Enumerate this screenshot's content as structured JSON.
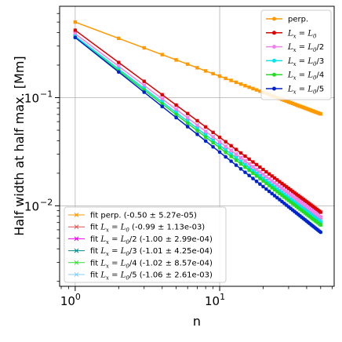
{
  "chart_data": {
    "type": "line",
    "xlabel": "n",
    "ylabel": "Half width at half max. [Mm]",
    "xscale": "log",
    "yscale": "log",
    "xlim": [
      0.78,
      62
    ],
    "ylim": [
      0.0018,
      0.7
    ],
    "grid": true,
    "x_ticks": [
      {
        "value": 1,
        "base": "10",
        "exp": "0"
      },
      {
        "value": 10,
        "base": "10",
        "exp": "1"
      }
    ],
    "y_ticks": [
      {
        "value": 0.01,
        "base": "10",
        "exp": "−2"
      },
      {
        "value": 0.1,
        "base": "10",
        "exp": "−1"
      }
    ],
    "n_max": 50,
    "legend_data_position": "upper right",
    "legend_fit_position": "lower left",
    "series": [
      {
        "key": "perp",
        "name": "perp.",
        "color": "#ff9900",
        "y_at_1": 0.5,
        "exponent": 0.5
      },
      {
        "key": "L0",
        "name": "Lₓ = L₀",
        "color": "#dd0000",
        "y_at_1": 0.42,
        "exponent": 0.99
      },
      {
        "key": "L0_2",
        "name": "Lₓ = L₀/2",
        "color": "#ee82ee",
        "y_at_1": 0.39,
        "exponent": 1.0
      },
      {
        "key": "L0_3",
        "name": "Lₓ = L₀/3",
        "color": "#00e5ee",
        "y_at_1": 0.37,
        "exponent": 1.01
      },
      {
        "key": "L0_4",
        "name": "Lₓ = L₀/4",
        "color": "#22dd22",
        "y_at_1": 0.36,
        "exponent": 1.02
      },
      {
        "key": "L0_5",
        "name": "Lₓ = L₀/5",
        "color": "#0022cc",
        "y_at_1": 0.36,
        "exponent": 1.06
      }
    ],
    "fits": [
      {
        "key": "perp",
        "color": "#ff9900",
        "prefix": "fit perp.",
        "label_suffix": " (-0.50 ± 5.27e-05)",
        "slope": -0.5,
        "error": "5.27e-05"
      },
      {
        "key": "L0",
        "color": "#e05050",
        "prefix": "fit",
        "label_suffix": " (-0.99 ± 1.13e-03)",
        "slope": -0.99,
        "error": "1.13e-03"
      },
      {
        "key": "L0_2",
        "color": "#ee00ee",
        "prefix": "fit",
        "label_suffix": " (-1.00 ± 2.99e-04)",
        "slope": -1.0,
        "error": "2.99e-04"
      },
      {
        "key": "L0_3",
        "color": "#008b8b",
        "prefix": "fit",
        "label_suffix": " (-1.01 ± 4.25e-04)",
        "slope": -1.01,
        "error": "4.25e-04"
      },
      {
        "key": "L0_4",
        "color": "#33dd33",
        "prefix": "fit",
        "label_suffix": " (-1.02 ± 8.57e-04)",
        "slope": -1.02,
        "error": "8.57e-04"
      },
      {
        "key": "L0_5",
        "color": "#87cefa",
        "prefix": "fit",
        "label_suffix": " (-1.06 ± 2.61e-03)",
        "slope": -1.06,
        "error": "2.61e-03"
      }
    ]
  }
}
